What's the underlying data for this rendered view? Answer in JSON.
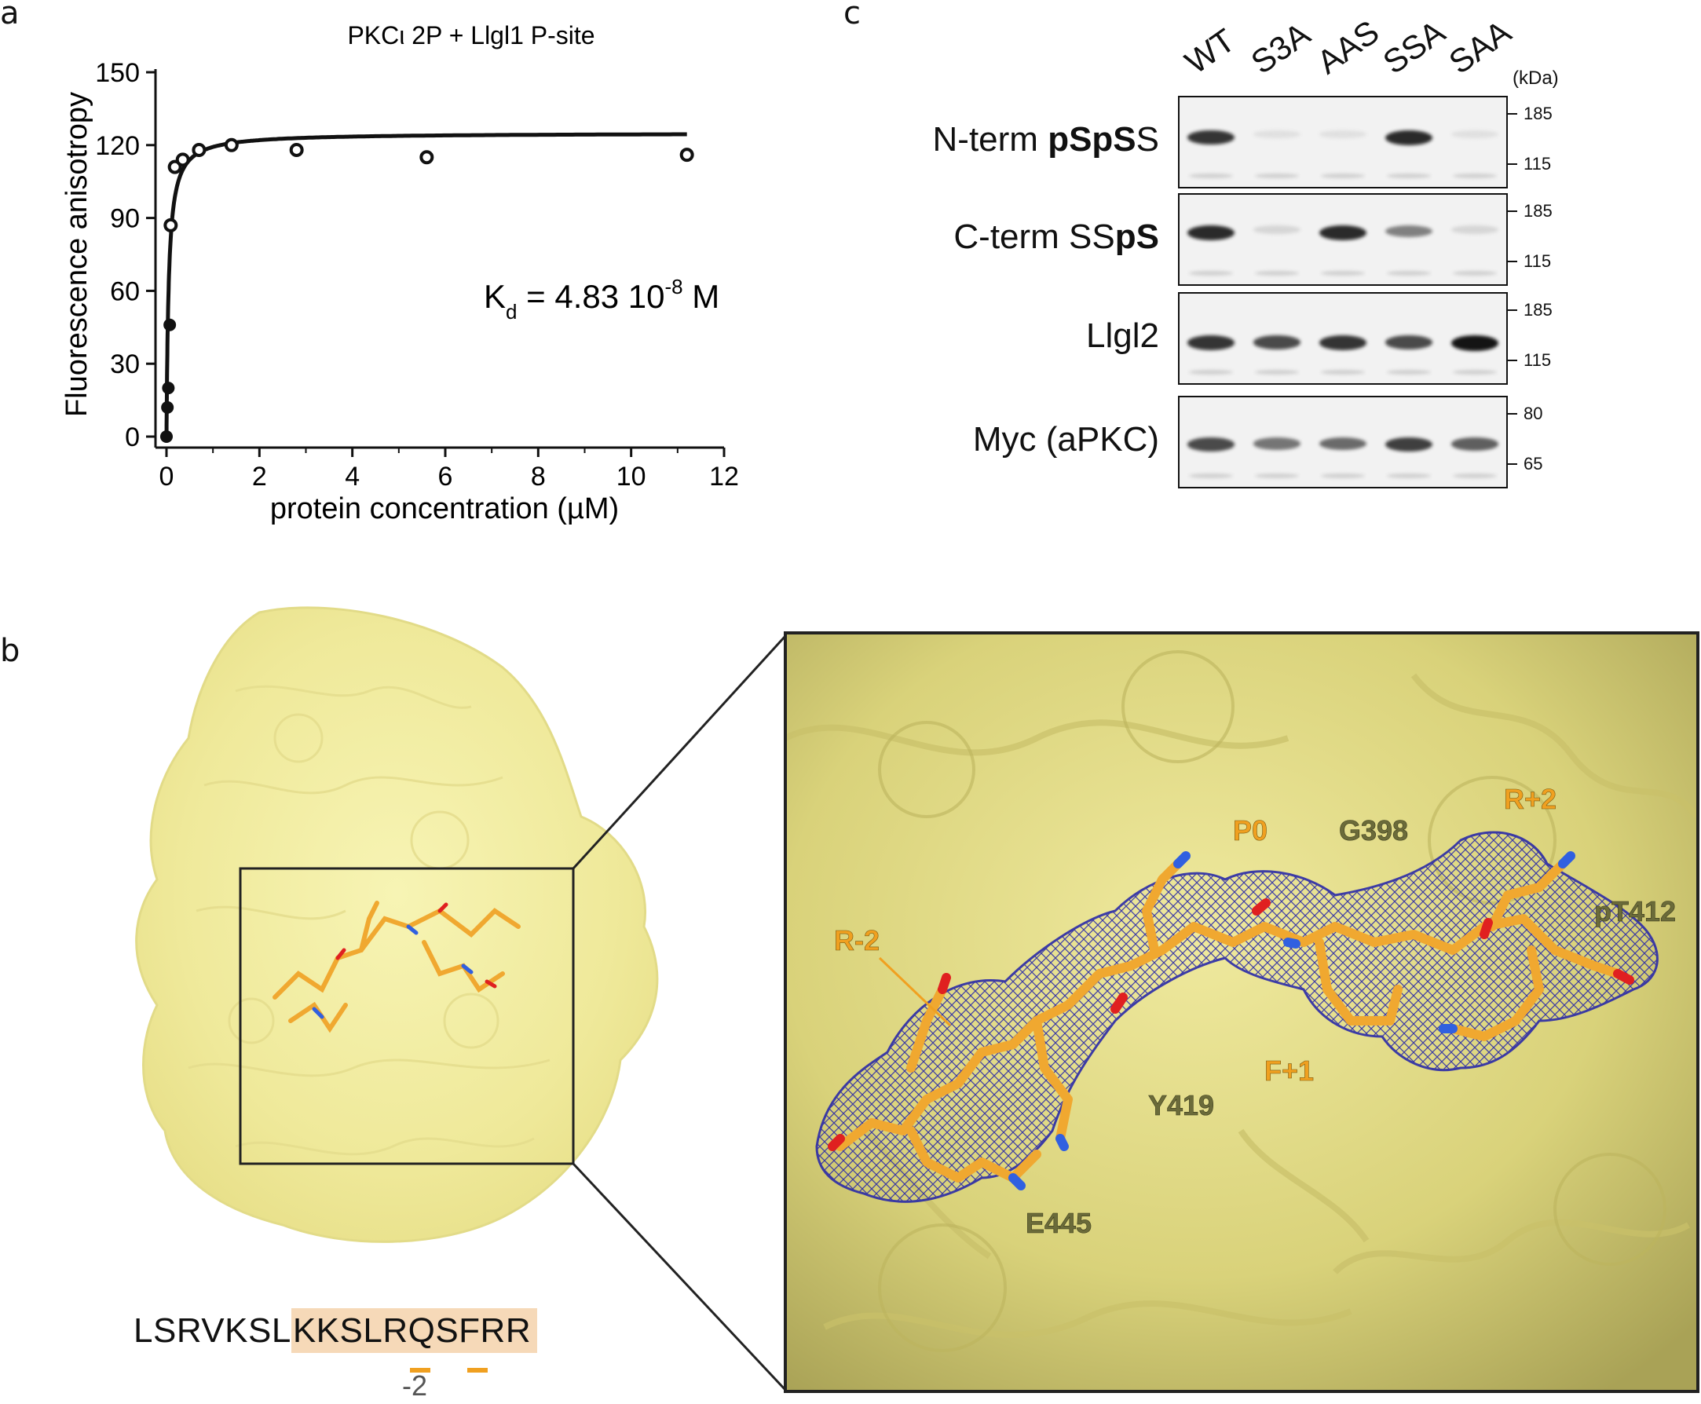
{
  "panel_labels": {
    "a": "a",
    "b": "b",
    "c": "c"
  },
  "chart_data": {
    "type": "scatter",
    "title": "PKCι 2P + Llgl1 P-site",
    "xlabel": "protein concentration (µM)",
    "ylabel": "Fluorescence anisotropy",
    "xlim": [
      0,
      12
    ],
    "ylim": [
      0,
      150
    ],
    "xticks": [
      0,
      2,
      4,
      6,
      8,
      10,
      12
    ],
    "yticks": [
      0,
      30,
      60,
      90,
      120,
      150
    ],
    "annotation": "K_d = 4.83 10^-8 M",
    "kd_text": {
      "k": "K",
      "sub": "d",
      "eq": " = 4.83 10",
      "sup": "-8",
      "unit": " M"
    },
    "series": [
      {
        "marker": "filled-circle",
        "x": [
          0.0,
          0.02,
          0.04,
          0.07
        ],
        "y": [
          0,
          12,
          20,
          46
        ]
      },
      {
        "marker": "open-circle",
        "x": [
          0.09,
          0.18,
          0.35,
          0.7,
          1.4,
          2.8,
          5.6,
          11.2
        ],
        "y": [
          87,
          111,
          114,
          118,
          120,
          118,
          115,
          116
        ]
      },
      {
        "type": "line",
        "name": "",
        "fit": {
          "bmax": 125,
          "kd": 0.0483
        }
      }
    ],
    "grid": false,
    "legend": "none"
  },
  "western_blot": {
    "lanes": [
      "WT",
      "S3A",
      "AAS",
      "SSA",
      "SAA"
    ],
    "unit": "(kDa)",
    "rows": [
      {
        "label_parts": [
          {
            "text": "N-term ",
            "bold": false
          },
          {
            "text": "pSpS",
            "bold": true
          },
          {
            "text": "S",
            "bold": false
          }
        ],
        "markers": [
          "185",
          "115"
        ],
        "bands": [
          0.85,
          0.05,
          0.05,
          0.9,
          0.05
        ],
        "band_pos": 0.42
      },
      {
        "label_parts": [
          {
            "text": "C-term SS",
            "bold": false
          },
          {
            "text": "pS",
            "bold": true
          }
        ],
        "markers": [
          "185",
          "115"
        ],
        "bands": [
          0.9,
          0.1,
          0.9,
          0.5,
          0.1
        ],
        "band_pos": 0.4
      },
      {
        "label_parts": [
          {
            "text": "Llgl2",
            "bold": false
          }
        ],
        "markers": [
          "185",
          "115"
        ],
        "bands": [
          0.85,
          0.75,
          0.85,
          0.75,
          1.0
        ],
        "band_pos": 0.52
      },
      {
        "label_parts": [
          {
            "text": "Myc (aPKC)",
            "bold": false
          }
        ],
        "markers": [
          "80",
          "65"
        ],
        "bands": [
          0.75,
          0.55,
          0.6,
          0.8,
          0.65
        ],
        "band_pos": 0.5
      }
    ]
  },
  "structure": {
    "sequence_plain": "LSRVKSL",
    "sequence_highlight": "KKSLRQSFRR",
    "sequence_mark": "-2",
    "residue_labels_orange": [
      "P0",
      "R+2",
      "R-2",
      "F+1"
    ],
    "residue_labels_gray": [
      "G398",
      "pT412",
      "Y419",
      "E445"
    ]
  },
  "colors": {
    "protein_surface": "#f3ef9a",
    "peptide": "#f0a830",
    "density_mesh": "#2a2aa8",
    "orange_label": "#f0a020",
    "gray_label": "#6b6b3a",
    "highlight": "#f6d9b8"
  }
}
